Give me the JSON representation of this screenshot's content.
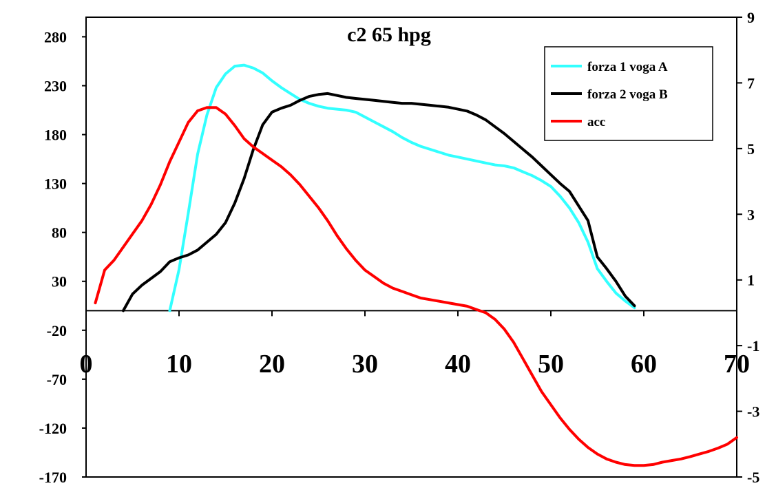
{
  "chart_data": {
    "type": "line",
    "title": "c2 65 hpg",
    "xlabel": "",
    "ylabel": "",
    "x_ticks": [
      "0",
      "10",
      "20",
      "30",
      "40",
      "50",
      "60",
      "70"
    ],
    "y_left_ticks": [
      "-170",
      "-120",
      "-70",
      "-20",
      "30",
      "80",
      "130",
      "180",
      "230",
      "280"
    ],
    "y_right_ticks": [
      "-5",
      "-3",
      "-1",
      "1",
      "3",
      "5",
      "7",
      "9"
    ],
    "xlim": [
      0,
      70
    ],
    "ylim_left": [
      -170,
      300
    ],
    "ylim_right": [
      -5,
      9
    ],
    "grid": false,
    "legend_position": "top-right",
    "series": [
      {
        "name": "forza 1 voga A",
        "color": "#33ffff",
        "axis": "left",
        "points": [
          [
            9,
            0
          ],
          [
            10,
            42
          ],
          [
            11,
            100
          ],
          [
            12,
            160
          ],
          [
            13,
            200
          ],
          [
            14,
            228
          ],
          [
            15,
            242
          ],
          [
            16,
            250
          ],
          [
            17,
            251
          ],
          [
            18,
            248
          ],
          [
            19,
            243
          ],
          [
            20,
            235
          ],
          [
            21,
            228
          ],
          [
            22,
            222
          ],
          [
            23,
            216
          ],
          [
            24,
            212
          ],
          [
            25,
            209
          ],
          [
            26,
            207
          ],
          [
            27,
            206
          ],
          [
            28,
            205
          ],
          [
            29,
            203
          ],
          [
            30,
            198
          ],
          [
            31,
            193
          ],
          [
            32,
            188
          ],
          [
            33,
            183
          ],
          [
            34,
            177
          ],
          [
            35,
            172
          ],
          [
            36,
            168
          ],
          [
            37,
            165
          ],
          [
            38,
            162
          ],
          [
            39,
            159
          ],
          [
            40,
            157
          ],
          [
            41,
            155
          ],
          [
            42,
            153
          ],
          [
            43,
            151
          ],
          [
            44,
            149
          ],
          [
            45,
            148
          ],
          [
            46,
            146
          ],
          [
            47,
            142
          ],
          [
            48,
            138
          ],
          [
            49,
            133
          ],
          [
            50,
            127
          ],
          [
            51,
            117
          ],
          [
            52,
            105
          ],
          [
            53,
            90
          ],
          [
            54,
            70
          ],
          [
            55,
            43
          ],
          [
            56,
            30
          ],
          [
            57,
            18
          ],
          [
            58,
            10
          ],
          [
            59,
            3
          ]
        ]
      },
      {
        "name": "forza 2 voga B",
        "color": "#000000",
        "axis": "left",
        "points": [
          [
            4,
            0
          ],
          [
            5,
            17
          ],
          [
            6,
            26
          ],
          [
            7,
            33
          ],
          [
            8,
            40
          ],
          [
            9,
            50
          ],
          [
            10,
            54
          ],
          [
            11,
            57
          ],
          [
            12,
            62
          ],
          [
            13,
            70
          ],
          [
            14,
            78
          ],
          [
            15,
            90
          ],
          [
            16,
            110
          ],
          [
            17,
            135
          ],
          [
            18,
            165
          ],
          [
            19,
            190
          ],
          [
            20,
            203
          ],
          [
            21,
            207
          ],
          [
            22,
            210
          ],
          [
            23,
            215
          ],
          [
            24,
            219
          ],
          [
            25,
            221
          ],
          [
            26,
            222
          ],
          [
            27,
            220
          ],
          [
            28,
            218
          ],
          [
            29,
            217
          ],
          [
            30,
            216
          ],
          [
            31,
            215
          ],
          [
            32,
            214
          ],
          [
            33,
            213
          ],
          [
            34,
            212
          ],
          [
            35,
            212
          ],
          [
            36,
            211
          ],
          [
            37,
            210
          ],
          [
            38,
            209
          ],
          [
            39,
            208
          ],
          [
            40,
            206
          ],
          [
            41,
            204
          ],
          [
            42,
            200
          ],
          [
            43,
            195
          ],
          [
            44,
            188
          ],
          [
            45,
            181
          ],
          [
            46,
            173
          ],
          [
            47,
            165
          ],
          [
            48,
            157
          ],
          [
            49,
            148
          ],
          [
            50,
            139
          ],
          [
            51,
            130
          ],
          [
            52,
            122
          ],
          [
            53,
            107
          ],
          [
            54,
            92
          ],
          [
            55,
            55
          ],
          [
            56,
            43
          ],
          [
            57,
            30
          ],
          [
            58,
            15
          ],
          [
            59,
            5
          ]
        ]
      },
      {
        "name": "acc",
        "color": "#ff0000",
        "axis": "right",
        "points": [
          [
            1,
            0.3
          ],
          [
            2,
            1.3
          ],
          [
            3,
            1.6
          ],
          [
            4,
            2.0
          ],
          [
            5,
            2.4
          ],
          [
            6,
            2.8
          ],
          [
            7,
            3.3
          ],
          [
            8,
            3.9
          ],
          [
            9,
            4.6
          ],
          [
            10,
            5.2
          ],
          [
            11,
            5.8
          ],
          [
            12,
            6.15
          ],
          [
            13,
            6.25
          ],
          [
            14,
            6.25
          ],
          [
            15,
            6.05
          ],
          [
            16,
            5.7
          ],
          [
            17,
            5.3
          ],
          [
            18,
            5.05
          ],
          [
            19,
            4.85
          ],
          [
            20,
            4.65
          ],
          [
            21,
            4.45
          ],
          [
            22,
            4.2
          ],
          [
            23,
            3.9
          ],
          [
            24,
            3.55
          ],
          [
            25,
            3.2
          ],
          [
            26,
            2.8
          ],
          [
            27,
            2.35
          ],
          [
            28,
            1.95
          ],
          [
            29,
            1.6
          ],
          [
            30,
            1.3
          ],
          [
            31,
            1.1
          ],
          [
            32,
            0.9
          ],
          [
            33,
            0.75
          ],
          [
            34,
            0.65
          ],
          [
            35,
            0.55
          ],
          [
            36,
            0.45
          ],
          [
            37,
            0.4
          ],
          [
            38,
            0.35
          ],
          [
            39,
            0.3
          ],
          [
            40,
            0.25
          ],
          [
            41,
            0.2
          ],
          [
            42,
            0.1
          ],
          [
            43,
            0.0
          ],
          [
            44,
            -0.2
          ],
          [
            45,
            -0.5
          ],
          [
            46,
            -0.9
          ],
          [
            47,
            -1.4
          ],
          [
            48,
            -1.9
          ],
          [
            49,
            -2.4
          ],
          [
            50,
            -2.8
          ],
          [
            51,
            -3.2
          ],
          [
            52,
            -3.55
          ],
          [
            53,
            -3.85
          ],
          [
            54,
            -4.1
          ],
          [
            55,
            -4.3
          ],
          [
            56,
            -4.45
          ],
          [
            57,
            -4.55
          ],
          [
            58,
            -4.62
          ],
          [
            59,
            -4.65
          ],
          [
            60,
            -4.65
          ],
          [
            61,
            -4.62
          ],
          [
            62,
            -4.55
          ],
          [
            63,
            -4.5
          ],
          [
            64,
            -4.45
          ],
          [
            65,
            -4.38
          ],
          [
            66,
            -4.3
          ],
          [
            67,
            -4.22
          ],
          [
            68,
            -4.12
          ],
          [
            69,
            -4.0
          ],
          [
            70,
            -3.8
          ]
        ]
      }
    ]
  }
}
